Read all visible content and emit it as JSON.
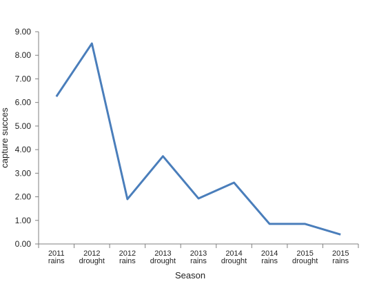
{
  "chart_data": {
    "type": "line",
    "title": "",
    "xlabel": "Season",
    "ylabel": "capture succes",
    "ylim": [
      0,
      9
    ],
    "ytick_labels": [
      "0.00",
      "1.00",
      "2.00",
      "3.00",
      "4.00",
      "5.00",
      "6.00",
      "7.00",
      "8.00",
      "9.00"
    ],
    "grid": false,
    "legend": "none",
    "categories": [
      [
        "2011",
        "rains"
      ],
      [
        "2012",
        "drought"
      ],
      [
        "2012",
        "rains"
      ],
      [
        "2013",
        "drought"
      ],
      [
        "2013",
        "rains"
      ],
      [
        "2014",
        "drought"
      ],
      [
        "2014",
        "rains"
      ],
      [
        "2015",
        "drought"
      ],
      [
        "2015",
        "rains"
      ]
    ],
    "series": [
      {
        "values": [
          6.25,
          8.5,
          1.9,
          3.72,
          1.93,
          2.6,
          0.85,
          0.85,
          0.4
        ],
        "color": "#4a7ebb"
      }
    ]
  }
}
